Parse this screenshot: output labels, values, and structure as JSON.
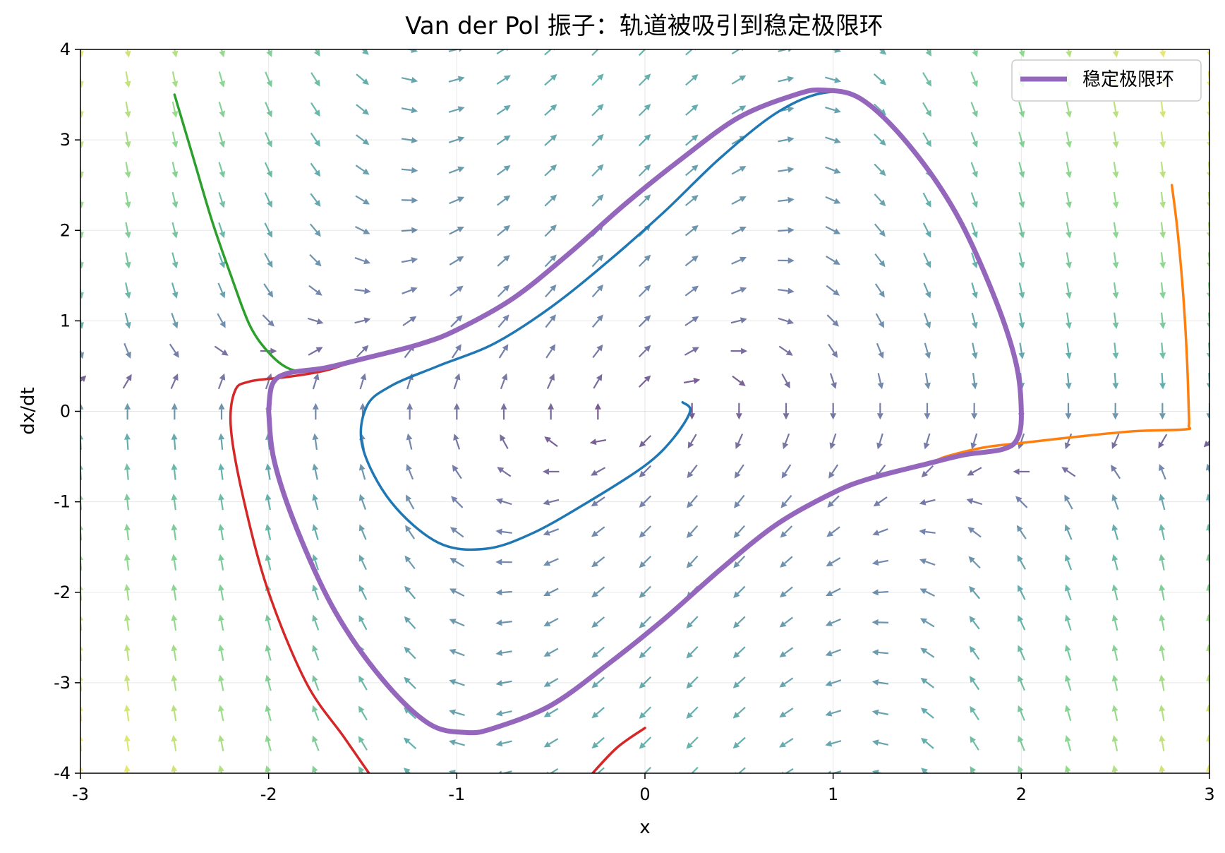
{
  "chart_data": {
    "type": "line",
    "title": "Van der Pol 振子：轨道被吸引到稳定极限环",
    "xlabel": "x",
    "ylabel": "dx/dt",
    "xlim": [
      -3,
      3
    ],
    "ylim": [
      -4,
      4
    ],
    "x_ticks": [
      "-3",
      "-2",
      "-1",
      "0",
      "1",
      "2",
      "3"
    ],
    "y_ticks": [
      "-4",
      "-3",
      "-2",
      "-1",
      "0",
      "1",
      "2",
      "3",
      "4"
    ],
    "grid": true,
    "legend_position": "top-right",
    "vector_field": {
      "description_mu": 1.0,
      "grid_x": [
        -3,
        3,
        25
      ],
      "grid_y": [
        -4,
        4,
        25
      ],
      "colormap": "viridis"
    },
    "series": [
      {
        "name": "稳定极限环",
        "color": "#9467bd",
        "role": "limit-cycle",
        "points": [
          [
            -2.0,
            0.0
          ],
          [
            -1.98,
            0.3
          ],
          [
            -1.9,
            0.42
          ],
          [
            -1.7,
            0.48
          ],
          [
            -1.5,
            0.58
          ],
          [
            -1.2,
            0.74
          ],
          [
            -1.0,
            0.9
          ],
          [
            -0.7,
            1.25
          ],
          [
            -0.4,
            1.75
          ],
          [
            -0.1,
            2.3
          ],
          [
            0.2,
            2.8
          ],
          [
            0.5,
            3.25
          ],
          [
            0.8,
            3.5
          ],
          [
            0.95,
            3.55
          ],
          [
            1.15,
            3.45
          ],
          [
            1.4,
            2.95
          ],
          [
            1.65,
            2.2
          ],
          [
            1.85,
            1.3
          ],
          [
            1.97,
            0.55
          ],
          [
            2.0,
            0.0
          ],
          [
            1.98,
            -0.3
          ],
          [
            1.9,
            -0.42
          ],
          [
            1.7,
            -0.48
          ],
          [
            1.5,
            -0.58
          ],
          [
            1.2,
            -0.74
          ],
          [
            1.0,
            -0.9
          ],
          [
            0.7,
            -1.25
          ],
          [
            0.4,
            -1.75
          ],
          [
            0.1,
            -2.3
          ],
          [
            -0.2,
            -2.8
          ],
          [
            -0.5,
            -3.25
          ],
          [
            -0.8,
            -3.5
          ],
          [
            -0.95,
            -3.55
          ],
          [
            -1.15,
            -3.45
          ],
          [
            -1.4,
            -2.95
          ],
          [
            -1.65,
            -2.2
          ],
          [
            -1.85,
            -1.3
          ],
          [
            -1.97,
            -0.55
          ],
          [
            -2.0,
            0.0
          ]
        ]
      },
      {
        "color": "#1f77b4",
        "role": "trajectory",
        "points": [
          [
            0.2,
            0.1
          ],
          [
            0.24,
            0.0
          ],
          [
            0.15,
            -0.3
          ],
          [
            0.0,
            -0.6
          ],
          [
            -0.3,
            -1.0
          ],
          [
            -0.6,
            -1.35
          ],
          [
            -0.85,
            -1.52
          ],
          [
            -1.1,
            -1.45
          ],
          [
            -1.35,
            -1.0
          ],
          [
            -1.5,
            -0.4
          ],
          [
            -1.48,
            0.05
          ],
          [
            -1.35,
            0.28
          ],
          [
            -1.1,
            0.5
          ],
          [
            -0.8,
            0.75
          ],
          [
            -0.5,
            1.15
          ],
          [
            -0.2,
            1.65
          ],
          [
            0.1,
            2.2
          ],
          [
            0.4,
            2.8
          ],
          [
            0.7,
            3.3
          ],
          [
            0.95,
            3.52
          ],
          [
            1.15,
            3.45
          ],
          [
            1.4,
            2.95
          ],
          [
            1.65,
            2.2
          ],
          [
            1.85,
            1.3
          ],
          [
            1.97,
            0.55
          ],
          [
            2.0,
            0.0
          ],
          [
            1.98,
            -0.3
          ],
          [
            1.9,
            -0.42
          ],
          [
            1.7,
            -0.48
          ],
          [
            1.5,
            -0.58
          ],
          [
            1.2,
            -0.74
          ],
          [
            1.0,
            -0.9
          ],
          [
            0.7,
            -1.25
          ],
          [
            0.4,
            -1.75
          ],
          [
            0.1,
            -2.3
          ],
          [
            -0.2,
            -2.8
          ],
          [
            -0.5,
            -3.25
          ],
          [
            -0.8,
            -3.5
          ],
          [
            -0.95,
            -3.55
          ],
          [
            -1.15,
            -3.45
          ],
          [
            -1.4,
            -2.95
          ],
          [
            -1.65,
            -2.2
          ],
          [
            -1.85,
            -1.3
          ],
          [
            -1.97,
            -0.55
          ],
          [
            -2.0,
            0.0
          ],
          [
            -1.98,
            0.3
          ],
          [
            -1.9,
            0.42
          ],
          [
            -1.7,
            0.48
          ],
          [
            -1.5,
            0.58
          ],
          [
            -1.2,
            0.74
          ],
          [
            -1.0,
            0.9
          ],
          [
            -0.7,
            1.25
          ],
          [
            -0.4,
            1.75
          ],
          [
            -0.1,
            2.3
          ],
          [
            0.2,
            2.8
          ],
          [
            0.5,
            3.25
          ],
          [
            0.8,
            3.5
          ]
        ]
      },
      {
        "color": "#ff7f0e",
        "role": "trajectory",
        "points": [
          [
            2.8,
            2.5
          ],
          [
            2.83,
            2.0
          ],
          [
            2.86,
            1.3
          ],
          [
            2.88,
            0.6
          ],
          [
            2.89,
            0.0
          ],
          [
            2.89,
            -0.16
          ],
          [
            2.87,
            -0.2
          ],
          [
            2.6,
            -0.22
          ],
          [
            2.3,
            -0.28
          ],
          [
            2.0,
            -0.35
          ],
          [
            1.8,
            -0.4
          ],
          [
            1.6,
            -0.5
          ],
          [
            1.5,
            -0.58
          ],
          [
            1.2,
            -0.74
          ],
          [
            1.0,
            -0.9
          ],
          [
            0.7,
            -1.25
          ],
          [
            0.4,
            -1.75
          ],
          [
            0.1,
            -2.3
          ],
          [
            -0.2,
            -2.8
          ],
          [
            -0.5,
            -3.25
          ],
          [
            -0.8,
            -3.5
          ],
          [
            -0.95,
            -3.55
          ]
        ]
      },
      {
        "color": "#2ca02c",
        "role": "trajectory",
        "points": [
          [
            -2.5,
            3.5
          ],
          [
            -2.4,
            2.8
          ],
          [
            -2.3,
            2.1
          ],
          [
            -2.2,
            1.5
          ],
          [
            -2.1,
            0.95
          ],
          [
            -2.0,
            0.65
          ],
          [
            -1.9,
            0.48
          ],
          [
            -1.8,
            0.44
          ],
          [
            -1.7,
            0.48
          ],
          [
            -1.5,
            0.58
          ],
          [
            -1.2,
            0.74
          ],
          [
            -1.0,
            0.9
          ],
          [
            -0.7,
            1.25
          ],
          [
            -0.4,
            1.75
          ],
          [
            -0.1,
            2.3
          ],
          [
            0.2,
            2.8
          ],
          [
            0.5,
            3.25
          ],
          [
            0.8,
            3.5
          ],
          [
            0.95,
            3.55
          ]
        ]
      },
      {
        "color": "#d62728",
        "role": "trajectory",
        "points": [
          [
            0.0,
            -3.5
          ],
          [
            -0.15,
            -3.72
          ],
          [
            -0.3,
            -4.05
          ]
        ],
        "points_2": [
          [
            -1.45,
            -4.05
          ],
          [
            -1.6,
            -3.6
          ],
          [
            -1.8,
            -3.0
          ],
          [
            -2.0,
            -2.0
          ],
          [
            -2.13,
            -1.0
          ],
          [
            -2.2,
            -0.2
          ],
          [
            -2.18,
            0.22
          ],
          [
            -2.1,
            0.33
          ],
          [
            -1.9,
            0.38
          ],
          [
            -1.7,
            0.45
          ],
          [
            -1.5,
            0.58
          ],
          [
            -1.2,
            0.74
          ],
          [
            -1.0,
            0.9
          ]
        ]
      }
    ]
  }
}
